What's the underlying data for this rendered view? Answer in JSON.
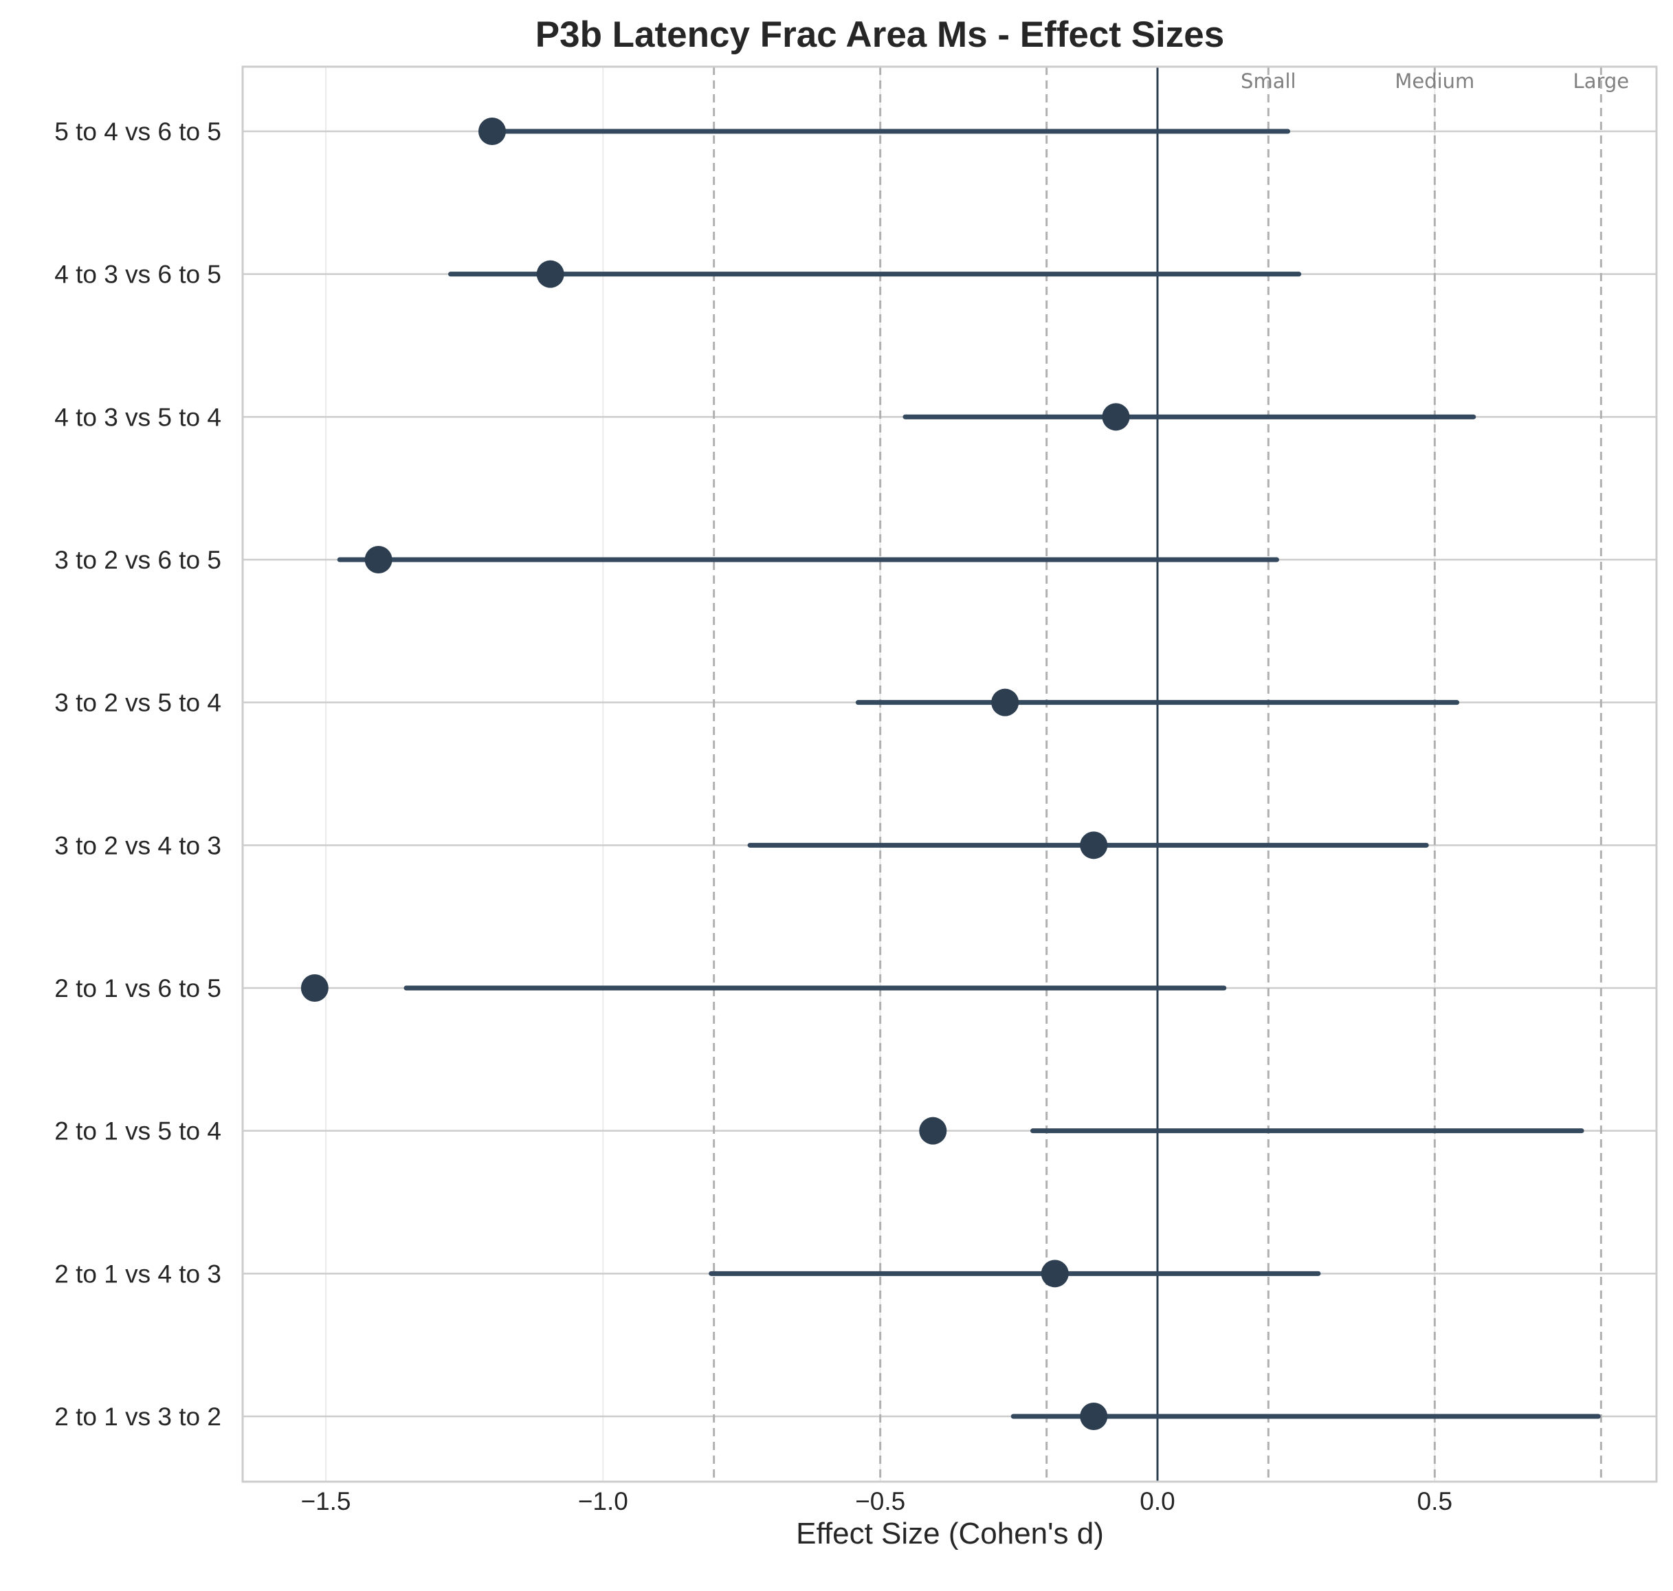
{
  "chart_data": {
    "type": "forest",
    "title": "P3b Latency Frac Area Ms - Effect Sizes",
    "xlabel": "Effect Size (Cohen's d)",
    "ylabel": "",
    "xlim": [
      -1.65,
      0.9
    ],
    "xticks": [
      {
        "value": -1.5,
        "label": "−1.5"
      },
      {
        "value": -1.0,
        "label": "−1.0"
      },
      {
        "value": -0.5,
        "label": "−0.5"
      },
      {
        "value": 0.0,
        "label": "0.0"
      },
      {
        "value": 0.5,
        "label": "0.5"
      }
    ],
    "grid": true,
    "zero_line": 0,
    "reference_lines": [
      -0.8,
      -0.5,
      -0.2,
      0.2,
      0.5,
      0.8
    ],
    "reference_labels": [
      {
        "value": 0.2,
        "text": "Small"
      },
      {
        "value": 0.5,
        "text": "Medium"
      },
      {
        "value": 0.8,
        "text": "Large"
      }
    ],
    "comparisons": [
      {
        "label": "5 to 4 vs 6 to 5",
        "d": -1.2,
        "ci": [
          -1.2,
          0.235
        ]
      },
      {
        "label": "4 to 3 vs 6 to 5",
        "d": -1.095,
        "ci": [
          -1.275,
          0.255
        ]
      },
      {
        "label": "4 to 3 vs 5 to 4",
        "d": -0.075,
        "ci": [
          -0.455,
          0.57
        ]
      },
      {
        "label": "3 to 2 vs 6 to 5",
        "d": -1.405,
        "ci": [
          -1.475,
          0.215
        ]
      },
      {
        "label": "3 to 2 vs 5 to 4",
        "d": -0.275,
        "ci": [
          -0.54,
          0.54
        ]
      },
      {
        "label": "3 to 2 vs 4 to 3",
        "d": -0.115,
        "ci": [
          -0.735,
          0.485
        ]
      },
      {
        "label": "2 to 1 vs 6 to 5",
        "d": -1.52,
        "ci": [
          -1.355,
          0.12
        ]
      },
      {
        "label": "2 to 1 vs 5 to 4",
        "d": -0.405,
        "ci": [
          -0.225,
          0.765
        ]
      },
      {
        "label": "2 to 1 vs 4 to 3",
        "d": -0.185,
        "ci": [
          -0.805,
          0.29
        ]
      },
      {
        "label": "2 to 1 vs 3 to 2",
        "d": -0.115,
        "ci": [
          -0.26,
          0.795
        ]
      }
    ],
    "colors": {
      "marker": "#2c3e50",
      "ci_line": "#34495e",
      "zero_line": "#2c3e50",
      "reference_line": "#b0b0b0",
      "grid": "#cccccc",
      "axes_frame": "#cccccc"
    }
  }
}
